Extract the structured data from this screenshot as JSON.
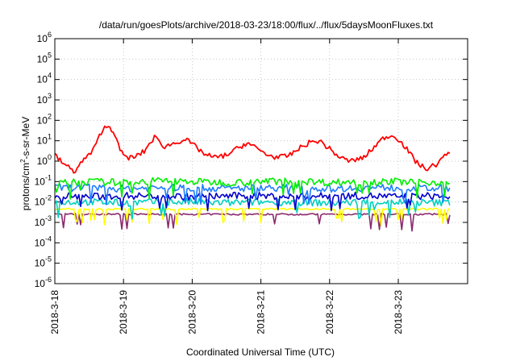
{
  "chart_data": {
    "type": "line",
    "title": "/data/run/goesPlots/archive/2018-03-23/18:00/flux/../flux/5daysMoonFluxes.txt",
    "xlabel": "Coordinated Universal Time (UTC)",
    "ylabel": {
      "base": "protons/cm",
      "sup": "2",
      "rest": "-s-sr-MeV"
    },
    "x_range": [
      "2018-03-18",
      "2018-03-23T18:00"
    ],
    "x_ticks": [
      "2018-3-18",
      "2018-3-19",
      "2018-3-20",
      "2018-3-21",
      "2018-3-22",
      "2018-3-23"
    ],
    "y_scale": "log",
    "ylim": [
      1e-06,
      1000000.0
    ],
    "y_ticks": [
      {
        "exp": "-6"
      },
      {
        "exp": "-5"
      },
      {
        "exp": "-4"
      },
      {
        "exp": "-3"
      },
      {
        "exp": "-2"
      },
      {
        "exp": "-1"
      },
      {
        "exp": "0"
      },
      {
        "exp": "1"
      },
      {
        "exp": "2"
      },
      {
        "exp": "3"
      },
      {
        "exp": "4"
      },
      {
        "exp": "5"
      },
      {
        "exp": "6"
      }
    ],
    "grid": true,
    "legend": "none",
    "series": [
      {
        "color": "#ff0000",
        "x_days": [
          0,
          0.1,
          0.2,
          0.28,
          0.35,
          0.45,
          0.55,
          0.62,
          0.7,
          0.8,
          0.88,
          0.95,
          1.05,
          1.15,
          1.3,
          1.45,
          1.6,
          1.75,
          1.9,
          2.05,
          2.2,
          2.35,
          2.5,
          2.65,
          2.8,
          2.95,
          3.1,
          3.25,
          3.4,
          3.55,
          3.7,
          3.85,
          4.0,
          4.15,
          4.3,
          4.5,
          4.65,
          4.8,
          4.95,
          5.1,
          5.25,
          5.4,
          5.55,
          5.7,
          5.75
        ],
        "values": [
          2,
          0.9,
          0.5,
          0.3,
          0.6,
          1.5,
          3,
          10,
          40,
          50,
          20,
          3,
          1.5,
          1.5,
          3,
          15,
          5,
          8,
          12,
          5,
          2,
          1.5,
          2,
          4,
          8,
          4,
          2,
          1.5,
          1.8,
          4,
          8,
          10,
          4,
          1.5,
          1,
          1.5,
          5,
          15,
          18,
          5,
          1,
          0.4,
          0.7,
          2,
          3
        ]
      },
      {
        "color": "#00ee00",
        "x_days": [
          0,
          0.5,
          1,
          1.5,
          2,
          2.5,
          3,
          3.5,
          4,
          4.5,
          5,
          5.5,
          5.75
        ],
        "values": [
          0.08,
          0.1,
          0.09,
          0.11,
          0.1,
          0.09,
          0.1,
          0.11,
          0.09,
          0.1,
          0.1,
          0.09,
          0.1
        ]
      },
      {
        "color": "#1e7cff",
        "x_days": [
          0,
          0.5,
          1,
          1.5,
          2,
          2.5,
          3,
          3.5,
          4,
          4.5,
          5,
          5.5,
          5.75
        ],
        "values": [
          0.05,
          0.05,
          0.045,
          0.05,
          0.05,
          0.045,
          0.05,
          0.05,
          0.045,
          0.05,
          0.05,
          0.045,
          0.05
        ]
      },
      {
        "color": "#0000cc",
        "x_days": [
          0,
          0.5,
          1,
          1.5,
          2,
          2.5,
          3,
          3.5,
          4,
          4.5,
          5,
          5.5,
          5.75
        ],
        "values": [
          0.02,
          0.018,
          0.02,
          0.02,
          0.018,
          0.02,
          0.02,
          0.018,
          0.02,
          0.02,
          0.018,
          0.02,
          0.018
        ]
      },
      {
        "color": "#00d0c0",
        "x_days": [
          0,
          0.5,
          1,
          1.5,
          2,
          2.5,
          3,
          3.5,
          4,
          4.5,
          5,
          5.5,
          5.75
        ],
        "values": [
          0.01,
          0.01,
          0.009,
          0.01,
          0.01,
          0.009,
          0.01,
          0.01,
          0.009,
          0.01,
          0.01,
          0.009,
          0.01
        ]
      },
      {
        "color": "#ffff00",
        "x_days": [
          0,
          0.5,
          1,
          1.5,
          2,
          2.5,
          3,
          3.5,
          4,
          4.5,
          5,
          5.5,
          5.75
        ],
        "values": [
          0.0045,
          0.0045,
          0.0045,
          0.0045,
          0.0045,
          0.0045,
          0.0045,
          0.0045,
          0.0045,
          0.0045,
          0.0045,
          0.0045,
          0.0045
        ]
      },
      {
        "color": "#8b2a6e",
        "x_days": [
          0,
          0.5,
          1,
          1.5,
          2,
          2.5,
          3,
          3.5,
          4,
          4.5,
          5,
          5.5,
          5.75
        ],
        "values": [
          0.0025,
          0.0025,
          0.0025,
          0.0025,
          0.0025,
          0.0025,
          0.0025,
          0.0025,
          0.0025,
          0.0025,
          0.0025,
          0.0025,
          0.0025
        ]
      }
    ]
  }
}
